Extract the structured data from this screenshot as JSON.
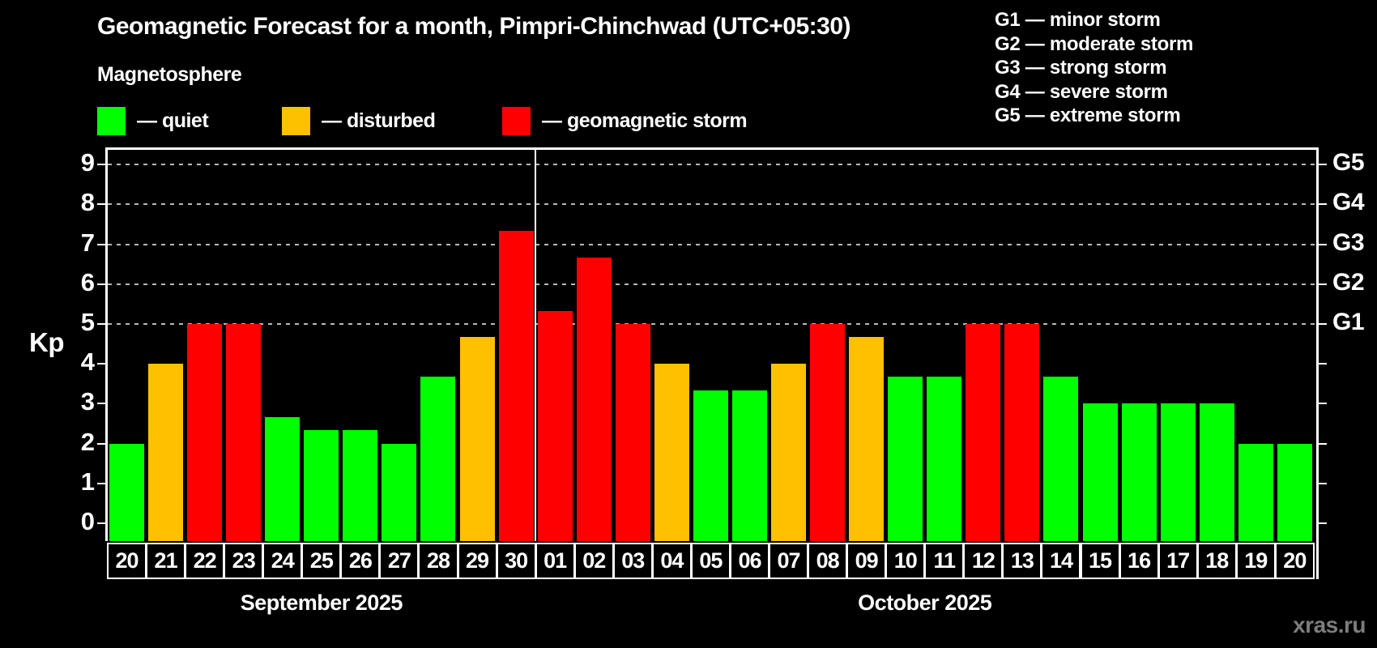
{
  "title": "Geomagnetic Forecast for a month, Pimpri-Chinchwad (UTC+05:30)",
  "subtitle": "Magnetosphere",
  "legend": {
    "items": [
      {
        "key": "quiet",
        "label": "— quiet",
        "color": "#00ff00"
      },
      {
        "key": "disturbed",
        "label": "— disturbed",
        "color": "#ffc000"
      },
      {
        "key": "storm",
        "label": "— geomagnetic storm",
        "color": "#ff0000"
      }
    ]
  },
  "g_legend": {
    "items": [
      "G1 — minor storm",
      "G2 — moderate storm",
      "G3 — strong storm",
      "G4 — severe storm",
      "G5 — extreme storm"
    ]
  },
  "axes": {
    "y_label": "Kp",
    "y_ticks": [
      "0",
      "1",
      "2",
      "3",
      "4",
      "5",
      "6",
      "7",
      "8",
      "9"
    ],
    "right_labels": [
      {
        "kp": 5,
        "label": "G1"
      },
      {
        "kp": 6,
        "label": "G2"
      },
      {
        "kp": 7,
        "label": "G3"
      },
      {
        "kp": 8,
        "label": "G4"
      },
      {
        "kp": 9,
        "label": "G5"
      }
    ]
  },
  "watermark": "xras.ru",
  "chart_data": {
    "type": "bar",
    "title": "Geomagnetic Forecast for a month, Pimpri-Chinchwad (UTC+05:30)",
    "ylabel": "Kp",
    "ylim": [
      0,
      9
    ],
    "gridlines_at": [
      5,
      6,
      7,
      8,
      9
    ],
    "legend_position": "top",
    "categories": [
      "20",
      "21",
      "22",
      "23",
      "24",
      "25",
      "26",
      "27",
      "28",
      "29",
      "30",
      "01",
      "02",
      "03",
      "04",
      "05",
      "06",
      "07",
      "08",
      "09",
      "10",
      "11",
      "12",
      "13",
      "14",
      "15",
      "16",
      "17",
      "18",
      "19",
      "20"
    ],
    "values": [
      2,
      4,
      5,
      5,
      2.67,
      2.33,
      2.33,
      2,
      3.67,
      4.67,
      7.33,
      5.33,
      6.67,
      5,
      4,
      3.33,
      3.33,
      4,
      5,
      4.67,
      3.67,
      3.67,
      5,
      5,
      3.67,
      3,
      3,
      3,
      3,
      2,
      2
    ],
    "status": [
      "quiet",
      "disturbed",
      "storm",
      "storm",
      "quiet",
      "quiet",
      "quiet",
      "quiet",
      "quiet",
      "disturbed",
      "storm",
      "storm",
      "storm",
      "storm",
      "disturbed",
      "quiet",
      "quiet",
      "disturbed",
      "storm",
      "disturbed",
      "quiet",
      "quiet",
      "storm",
      "storm",
      "quiet",
      "quiet",
      "quiet",
      "quiet",
      "quiet",
      "quiet",
      "quiet"
    ],
    "month_groups": [
      {
        "label": "September 2025",
        "count": 11
      },
      {
        "label": "October 2025",
        "count": 20
      }
    ],
    "colors": {
      "quiet": "#00ff00",
      "disturbed": "#ffc000",
      "storm": "#ff0000"
    }
  }
}
